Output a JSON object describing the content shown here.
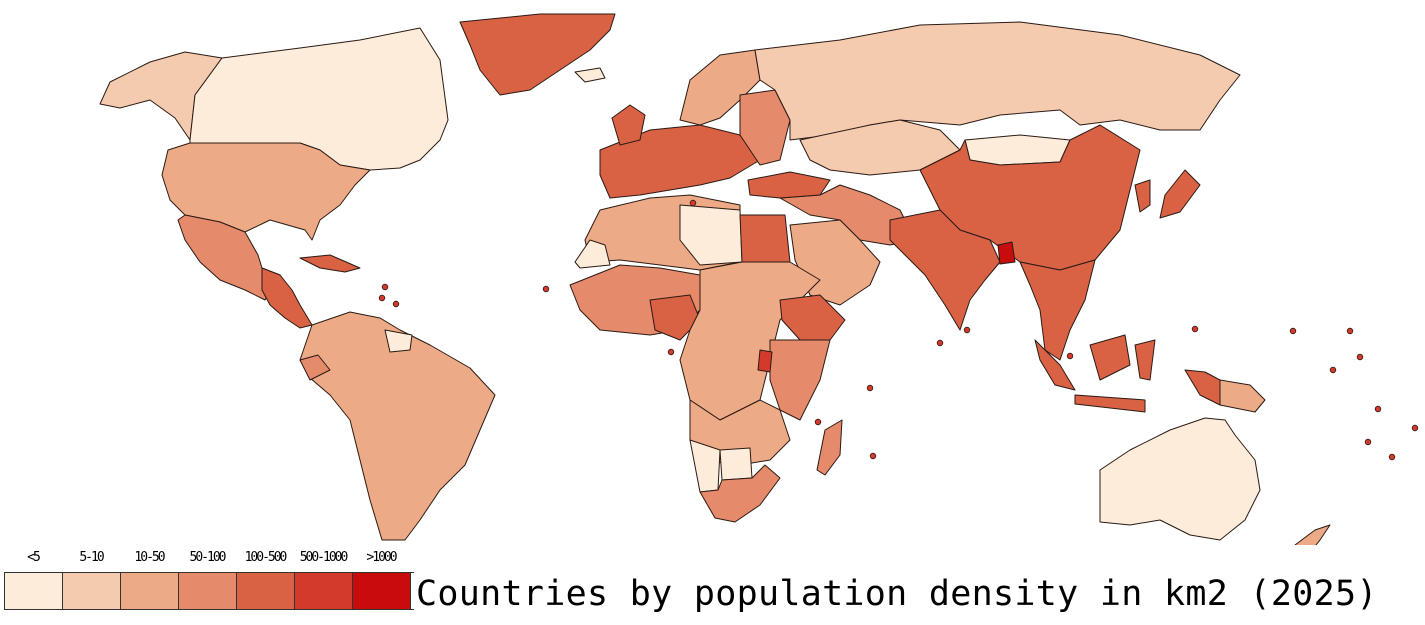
{
  "title": "Countries by population density in km2 (2025)",
  "legend": [
    {
      "label": "<5",
      "color": "#fdecd9"
    },
    {
      "label": "5-10",
      "color": "#f5cbb0"
    },
    {
      "label": "10-50",
      "color": "#edaa86"
    },
    {
      "label": "50-100",
      "color": "#e58a6b"
    },
    {
      "label": "100-500",
      "color": "#d96245"
    },
    {
      "label": "500-1000",
      "color": "#d33a2c"
    },
    {
      "label": ">1000",
      "color": "#c80c0c"
    }
  ],
  "colors": {
    "border": "#2b1a14",
    "ocean": "#ffffff"
  },
  "regions": [
    {
      "name": "Alaska",
      "density": "5-10"
    },
    {
      "name": "Canada",
      "density": "<5"
    },
    {
      "name": "Greenland",
      "density": "100-500"
    },
    {
      "name": "United States",
      "density": "10-50"
    },
    {
      "name": "Mexico",
      "density": "50-100"
    },
    {
      "name": "Central America",
      "density": "100-500"
    },
    {
      "name": "Caribbean",
      "density": "100-500"
    },
    {
      "name": "South America",
      "density": "10-50"
    },
    {
      "name": "Ecuador",
      "density": "50-100"
    },
    {
      "name": "Guianas",
      "density": "<5"
    },
    {
      "name": "Iceland",
      "density": "<5"
    },
    {
      "name": "Scandinavia",
      "density": "10-50"
    },
    {
      "name": "Western Europe",
      "density": "100-500"
    },
    {
      "name": "United Kingdom",
      "density": "100-500"
    },
    {
      "name": "Eastern Europe",
      "density": "50-100"
    },
    {
      "name": "Russia",
      "density": "5-10"
    },
    {
      "name": "Kazakhstan",
      "density": "5-10"
    },
    {
      "name": "Mongolia",
      "density": "<5"
    },
    {
      "name": "China",
      "density": "100-500"
    },
    {
      "name": "Korea and Japan",
      "density": "100-500"
    },
    {
      "name": "Middle East",
      "density": "50-100"
    },
    {
      "name": "Arabian Peninsula",
      "density": "10-50"
    },
    {
      "name": "Turkey",
      "density": "100-500"
    },
    {
      "name": "India",
      "density": "100-500"
    },
    {
      "name": "Bangladesh",
      "density": ">1000"
    },
    {
      "name": "Southeast Asia",
      "density": "100-500"
    },
    {
      "name": "Indonesia",
      "density": "100-500"
    },
    {
      "name": "Papua New Guinea",
      "density": "10-50"
    },
    {
      "name": "Australia",
      "density": "<5"
    },
    {
      "name": "New Zealand",
      "density": "10-50"
    },
    {
      "name": "North Africa",
      "density": "10-50"
    },
    {
      "name": "Libya",
      "density": "<5"
    },
    {
      "name": "Western Sahara",
      "density": "<5"
    },
    {
      "name": "Egypt",
      "density": "100-500"
    },
    {
      "name": "West Africa",
      "density": "50-100"
    },
    {
      "name": "Nigeria",
      "density": "100-500"
    },
    {
      "name": "Central Africa",
      "density": "10-50"
    },
    {
      "name": "Ethiopia",
      "density": "100-500"
    },
    {
      "name": "East Africa",
      "density": "50-100"
    },
    {
      "name": "Rwanda and Burundi",
      "density": "500-1000"
    },
    {
      "name": "Southern Africa",
      "density": "10-50"
    },
    {
      "name": "Namibia",
      "density": "<5"
    },
    {
      "name": "Botswana",
      "density": "<5"
    },
    {
      "name": "South Africa",
      "density": "50-100"
    },
    {
      "name": "Madagascar",
      "density": "50-100"
    }
  ]
}
